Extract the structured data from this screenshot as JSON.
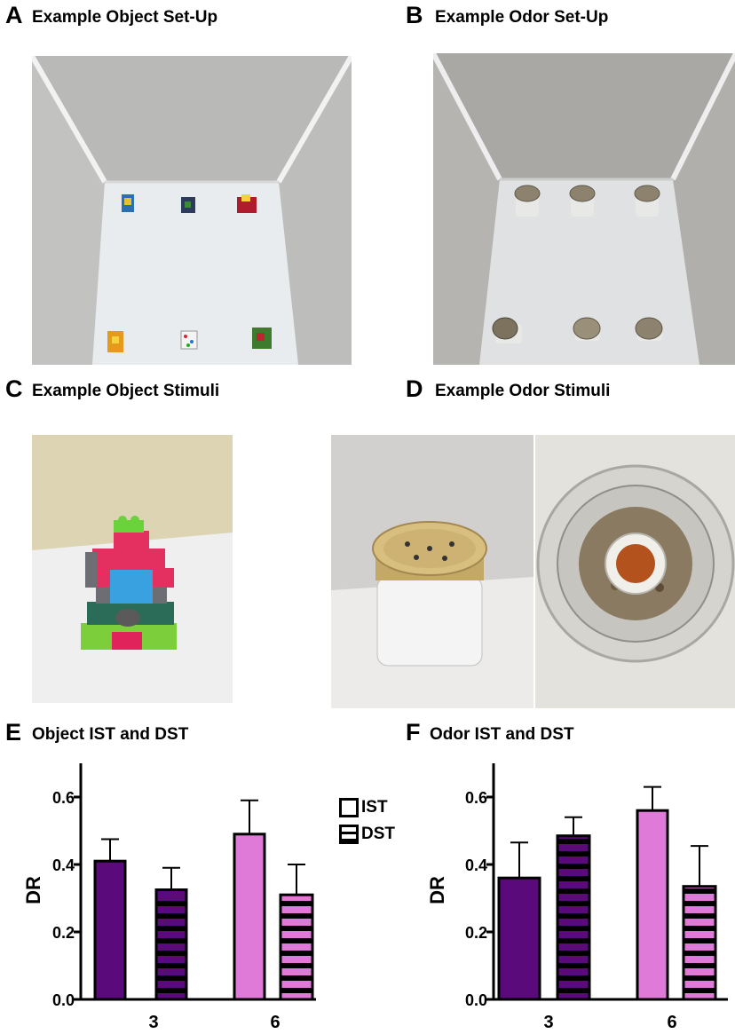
{
  "panels": {
    "A": {
      "letter": "A",
      "title": "Example Object Set-Up"
    },
    "B": {
      "letter": "B",
      "title": "Example Odor Set-Up"
    },
    "C": {
      "letter": "C",
      "title": "Example Object Stimuli"
    },
    "D": {
      "letter": "D",
      "title": "Example Odor Stimuli"
    },
    "E": {
      "letter": "E",
      "title": "Object IST and DST"
    },
    "F": {
      "letter": "F",
      "title": "Odor IST and DST"
    }
  },
  "legend": {
    "items": [
      {
        "label": "IST",
        "pattern": "solid"
      },
      {
        "label": "DST",
        "pattern": "striped"
      }
    ]
  },
  "colors": {
    "dark_purple": "#5a0a7a",
    "pink": "#e07ad8",
    "stripe": "#000000"
  },
  "chart_data": [
    {
      "type": "bar",
      "panel": "E",
      "title": "Object IST and DST",
      "xlabel": "",
      "ylabel": "DR",
      "ylim": [
        0.0,
        0.7
      ],
      "yticks": [
        "0.0",
        "0.2",
        "0.4",
        "0.6"
      ],
      "categories": [
        "3",
        "6"
      ],
      "series": [
        {
          "name": "IST",
          "values": [
            0.41,
            0.49
          ],
          "errors": [
            0.065,
            0.1
          ],
          "colors": [
            "#5a0a7a",
            "#e07ad8"
          ],
          "pattern": "solid"
        },
        {
          "name": "DST",
          "values": [
            0.325,
            0.31
          ],
          "errors": [
            0.065,
            0.09
          ],
          "colors": [
            "#5a0a7a",
            "#e07ad8"
          ],
          "pattern": "striped"
        }
      ]
    },
    {
      "type": "bar",
      "panel": "F",
      "title": "Odor IST and DST",
      "xlabel": "",
      "ylabel": "DR",
      "ylim": [
        0.0,
        0.7
      ],
      "yticks": [
        "0.0",
        "0.2",
        "0.4",
        "0.6"
      ],
      "categories": [
        "3",
        "6"
      ],
      "series": [
        {
          "name": "IST",
          "values": [
            0.36,
            0.56
          ],
          "errors": [
            0.105,
            0.07
          ],
          "colors": [
            "#5a0a7a",
            "#e07ad8"
          ],
          "pattern": "solid"
        },
        {
          "name": "DST",
          "values": [
            0.485,
            0.335
          ],
          "errors": [
            0.055,
            0.12
          ],
          "colors": [
            "#5a0a7a",
            "#e07ad8"
          ],
          "pattern": "striped"
        }
      ]
    }
  ]
}
